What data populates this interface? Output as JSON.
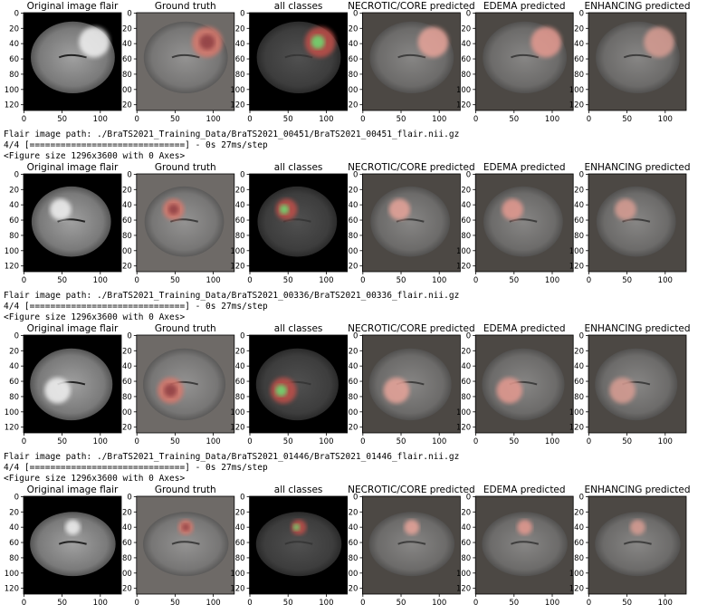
{
  "rows": [
    {
      "titles": [
        "Original image flair",
        "Ground truth",
        "all classes",
        "NECROTIC/CORE predicted",
        "EDEMA predicted",
        "ENHANCING predicted"
      ]
    },
    {
      "titles": [
        "Original image flair",
        "Ground truth",
        "all classes",
        "NECROTIC/CORE predicted",
        "EDEMA predicted",
        "ENHANCING predicted"
      ]
    },
    {
      "titles": [
        "Original image flair",
        "Ground truth",
        "all classes",
        "NECROTIC/CORE predicted",
        "EDEMA predicted",
        "ENHANCING predicted"
      ]
    },
    {
      "titles": [
        "Original image flair",
        "Ground truth",
        "all classes",
        "NECROTIC/CORE predicted",
        "EDEMA predicted",
        "ENHANCING predicted"
      ]
    }
  ],
  "logs": [
    [
      "Flair image path: ./BraTS2021_Training_Data/BraTS2021_00451/BraTS2021_00451_flair.nii.gz",
      "4/4 [==============================] - 0s 27ms/step",
      "<Figure size 1296x3600 with 0 Axes>"
    ],
    [
      "Flair image path: ./BraTS2021_Training_Data/BraTS2021_00336/BraTS2021_00336_flair.nii.gz",
      "4/4 [==============================] - 0s 27ms/step",
      "<Figure size 1296x3600 with 0 Axes>"
    ],
    [
      "Flair image path: ./BraTS2021_Training_Data/BraTS2021_01446/BraTS2021_01446_flair.nii.gz",
      "4/4 [==============================] - 0s 27ms/step",
      "<Figure size 1296x3600 with 0 Axes>"
    ]
  ],
  "xticks": [
    0,
    50,
    100
  ],
  "yticks": [
    0,
    20,
    40,
    60,
    80,
    100,
    120
  ]
}
